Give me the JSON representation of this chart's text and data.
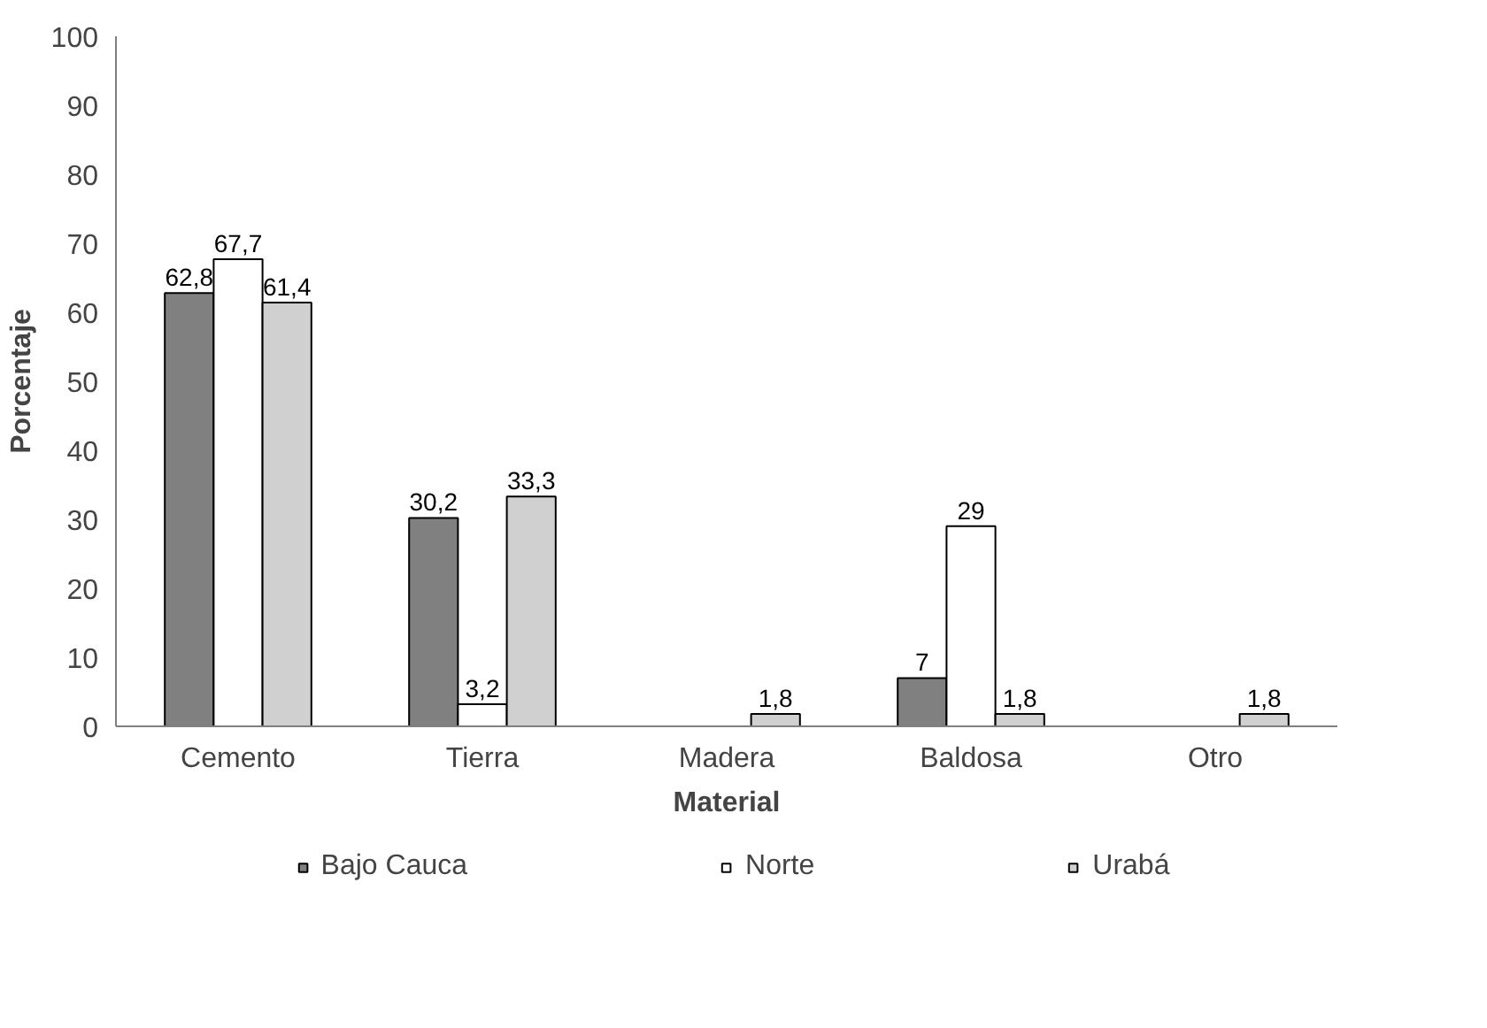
{
  "chart_data": {
    "type": "bar",
    "xlabel": "Material",
    "ylabel": "Porcentaje",
    "categories": [
      "Cemento",
      "Tierra",
      "Madera",
      "Baldosa",
      "Otro"
    ],
    "series": [
      {
        "name": "Bajo Cauca",
        "color": "#808080",
        "values": [
          62.8,
          30.2,
          null,
          7,
          null
        ],
        "value_labels": [
          "62,8",
          "30,2",
          null,
          "7",
          null
        ]
      },
      {
        "name": "Norte",
        "color": "#ffffff",
        "values": [
          67.7,
          3.2,
          null,
          29,
          null
        ],
        "value_labels": [
          "67,7",
          "3,2",
          null,
          "29",
          null
        ]
      },
      {
        "name": "Urabá",
        "color": "#d0d0d0",
        "values": [
          61.4,
          33.3,
          1.8,
          1.8,
          1.8
        ],
        "value_labels": [
          "61,4",
          "33,3",
          "1,8",
          "1,8",
          "1,8"
        ]
      }
    ],
    "ylim": [
      0,
      100
    ],
    "yticks": [
      0,
      10,
      20,
      30,
      40,
      50,
      60,
      70,
      80,
      90,
      100
    ],
    "grid": false,
    "legend": "bottom"
  }
}
